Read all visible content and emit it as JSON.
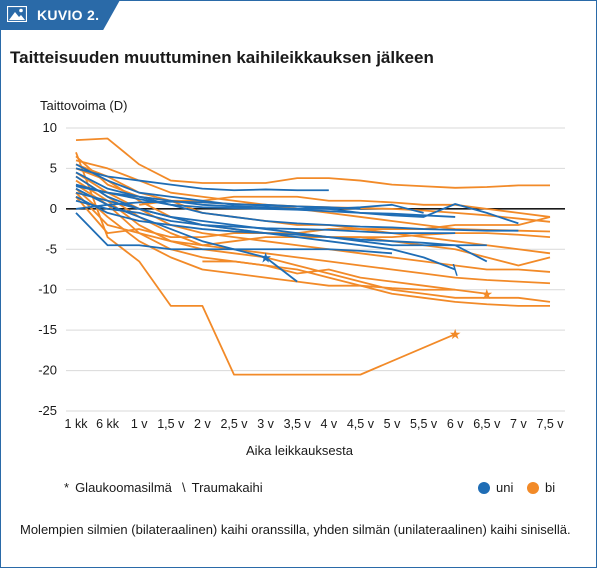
{
  "header": {
    "label": "KUVIO 2.",
    "icon": "image-icon",
    "color": "#2a6aa8"
  },
  "legend": {
    "glaucoma_symbol": "*",
    "glaucoma_label": "Glaukoomasilmä",
    "trauma_symbol": "\\",
    "trauma_label": "Traumakaihi",
    "uni_label": "uni",
    "bi_label": "bi"
  },
  "caption": "Molempien silmien (bilateraalinen) kaihi oranssilla, yhden silmän (unilateraalinen) kaihi sinisellä.",
  "colors": {
    "uni": "#1f6db5",
    "bi": "#f28a28",
    "grid": "#d9d9d9",
    "axis": "#1a1a1a"
  },
  "chart_data": {
    "type": "line",
    "title": "Taitteisuuden muuttuminen kaihileikkauksen jälkeen",
    "ylabel": "Taittovoima (D)",
    "xlabel": "Aika leikkauksesta",
    "categories": [
      "1 kk",
      "6 kk",
      "1 v",
      "1,5 v",
      "2 v",
      "2,5 v",
      "3 v",
      "3,5 v",
      "4 v",
      "4,5 v",
      "5 v",
      "5,5 v",
      "6 v",
      "6,5 v",
      "7 v",
      "7,5 v"
    ],
    "yticks": [
      10,
      5,
      0,
      -5,
      -10,
      -15,
      -20,
      -25
    ],
    "ylim": [
      -25,
      10
    ],
    "grid": true,
    "series": [
      {
        "group": "bi",
        "values": [
          8.5,
          8.7,
          5.5,
          3.5,
          3.2,
          3.2,
          3.2,
          3.8,
          3.8,
          3.5,
          3.0,
          2.8,
          2.6,
          2.7,
          2.9,
          2.9
        ]
      },
      {
        "group": "bi",
        "values": [
          7.0,
          -3.5,
          -6.5,
          -12.0,
          -12.0,
          -20.5,
          -20.5,
          -20.5,
          -20.5,
          -20.5,
          null,
          null,
          -15.5,
          null,
          null,
          null
        ],
        "marker_at": 12,
        "marker": "*"
      },
      {
        "group": "bi",
        "values": [
          6.5,
          3.0,
          1.5,
          1.0,
          0.8,
          0.6,
          0.5,
          0.3,
          0.2,
          0.1,
          0.0,
          -0.2,
          -0.5,
          -0.8,
          -1.2,
          -1.6
        ]
      },
      {
        "group": "bi",
        "values": [
          6.0,
          5.0,
          3.5,
          2.0,
          1.5,
          1.0,
          0.5,
          0.0,
          -0.5,
          -1.0,
          -1.5,
          -2.0,
          -2.5,
          -2.6,
          -2.7,
          -2.8
        ]
      },
      {
        "group": "bi",
        "values": [
          5.5,
          4.0,
          2.0,
          1.0,
          -0.5,
          -1.0,
          -1.5,
          -2.0,
          -2.0,
          -2.5,
          -3.0,
          -3.5,
          -4.0,
          -4.5,
          -5.0,
          -5.5
        ]
      },
      {
        "group": "bi",
        "values": [
          5.0,
          3.5,
          1.0,
          -1.0,
          -2.0,
          -2.5,
          -3.0,
          -3.0,
          -3.5,
          -3.5,
          -4.0,
          -4.5,
          -5.0,
          -6.0,
          -7.0,
          -6.0
        ]
      },
      {
        "group": "bi",
        "values": [
          4.5,
          2.0,
          0.0,
          -2.0,
          -3.0,
          -3.5,
          -4.0,
          -4.5,
          -5.0,
          -5.5,
          -6.0,
          -6.5,
          -7.0,
          -7.5,
          -7.5,
          -7.8
        ]
      },
      {
        "group": "bi",
        "values": [
          4.0,
          1.5,
          -1.0,
          -3.0,
          -4.5,
          -5.0,
          -5.5,
          -6.0,
          -6.5,
          -7.0,
          -7.5,
          -8.0,
          -8.5,
          -8.8,
          -9.0,
          -9.2
        ]
      },
      {
        "group": "bi",
        "values": [
          3.5,
          1.0,
          -2.0,
          -4.0,
          -5.0,
          -5.5,
          -6.0,
          -7.0,
          -8.0,
          -9.0,
          -10.0,
          -10.5,
          -11.0,
          -11.0,
          -11.0,
          -11.5
        ]
      },
      {
        "group": "bi",
        "values": [
          3.0,
          0.5,
          -3.0,
          -5.0,
          -6.0,
          -6.5,
          -7.0,
          -7.5,
          -8.5,
          -9.5,
          -10.5,
          -11.0,
          -11.5,
          -11.8,
          -12.0,
          -12.0
        ]
      },
      {
        "group": "bi",
        "values": [
          2.5,
          -1.0,
          -4.0,
          -6.0,
          -7.5,
          -8.0,
          -8.5,
          -9.0,
          -9.5,
          -9.5,
          -9.8,
          -10.0,
          -10.0,
          null,
          null,
          null
        ]
      },
      {
        "group": "bi",
        "values": [
          2.0,
          -2.0,
          -3.0,
          -4.0,
          -4.5,
          -4.0,
          -3.5,
          -3.5,
          -3.5,
          -3.5,
          -3.5,
          -3.2,
          -3.0,
          -3.0,
          -3.2,
          -3.5
        ]
      },
      {
        "group": "bi",
        "values": [
          1.5,
          -3.0,
          -2.5,
          -3.5,
          -3.5,
          -3.0,
          -3.0,
          -3.0,
          -2.5,
          -2.5,
          -2.5,
          -2.5,
          -2.0,
          -2.0,
          -2.0,
          -1.0
        ]
      },
      {
        "group": "bi",
        "values": [
          null,
          null,
          null,
          null,
          -6.5,
          -6.5,
          -7.0,
          -8.0,
          -7.5,
          -8.5,
          -9.0,
          -9.5,
          -10.0,
          -10.5,
          null,
          null
        ],
        "marker_at": 13,
        "marker": "*"
      },
      {
        "group": "bi",
        "values": [
          null,
          null,
          0.5,
          1.0,
          1.0,
          1.5,
          1.5,
          1.5,
          1.0,
          1.0,
          0.8,
          0.5,
          0.5,
          0.0,
          -0.5,
          -1.0
        ]
      },
      {
        "group": "uni",
        "values": [
          5.5,
          3.5,
          2.0,
          1.5,
          1.0,
          0.5,
          0.5,
          0.3,
          0.0,
          -0.5,
          -0.8,
          -1.0,
          0.6,
          -0.5,
          -1.8,
          null
        ]
      },
      {
        "group": "uni",
        "values": [
          5.0,
          4.0,
          3.5,
          3.0,
          2.5,
          2.3,
          2.4,
          2.3,
          2.3,
          null,
          null,
          null,
          null,
          null,
          null,
          null
        ]
      },
      {
        "group": "uni",
        "values": [
          4.5,
          2.5,
          1.5,
          1.0,
          0.5,
          0.3,
          0.2,
          0.0,
          0.0,
          0.2,
          0.5,
          -0.5,
          null,
          null,
          null,
          null
        ]
      },
      {
        "group": "uni",
        "values": [
          4.0,
          1.5,
          0.0,
          -1.0,
          -1.5,
          -2.0,
          -2.5,
          -3.0,
          -3.5,
          -4.0,
          -4.5,
          -4.5,
          -4.5,
          -4.5,
          null,
          null
        ]
      },
      {
        "group": "uni",
        "values": [
          3.0,
          2.0,
          1.5,
          0.5,
          -0.5,
          -1.0,
          -1.5,
          -1.8,
          -2.0,
          -2.2,
          -2.3,
          -2.5,
          -2.6,
          -2.7,
          -2.7,
          null
        ]
      },
      {
        "group": "uni",
        "values": [
          2.5,
          0.5,
          -1.0,
          -2.5,
          -4.0,
          -5.0,
          -6.0,
          -9.0,
          null,
          null,
          null,
          null,
          null,
          null,
          null,
          null
        ],
        "marker_at": 6,
        "marker": "*"
      },
      {
        "group": "uni",
        "values": [
          2.0,
          1.0,
          0.0,
          -1.0,
          -2.0,
          -2.5,
          -3.0,
          -3.5,
          -4.0,
          -4.5,
          -5.0,
          -6.0,
          -7.5,
          null,
          null,
          null
        ],
        "marker_at": 12,
        "marker": "\\"
      },
      {
        "group": "uni",
        "values": [
          1.5,
          -0.5,
          -1.5,
          -2.0,
          -2.5,
          -2.8,
          -3.0,
          -3.2,
          -3.5,
          -3.8,
          -4.0,
          -4.2,
          -4.5,
          -6.5,
          null,
          null
        ]
      },
      {
        "group": "uni",
        "values": [
          1.0,
          0.0,
          -0.5,
          -1.5,
          -2.0,
          -2.2,
          -2.4,
          -2.5,
          -2.6,
          -2.8,
          -3.0,
          -3.0,
          -3.0,
          null,
          null,
          null
        ]
      },
      {
        "group": "uni",
        "values": [
          -0.5,
          -4.5,
          -4.5,
          -5.0,
          -5.0,
          -5.0,
          -5.0,
          -5.0,
          -5.0,
          -5.2,
          -5.5,
          null,
          null,
          null,
          null,
          null
        ]
      },
      {
        "group": "uni",
        "values": [
          2.8,
          2.0,
          1.2,
          0.5,
          0.2,
          0.1,
          0.0,
          -0.1,
          -0.3,
          -0.5,
          -0.6,
          -0.8,
          -1.0,
          null,
          null,
          null
        ]
      },
      {
        "group": "uni",
        "values": [
          0.0,
          0.5,
          0.8,
          0.9,
          0.8,
          0.6,
          0.4,
          0.3,
          0.2,
          0.0,
          null,
          null,
          null,
          null,
          null,
          null
        ]
      }
    ]
  }
}
